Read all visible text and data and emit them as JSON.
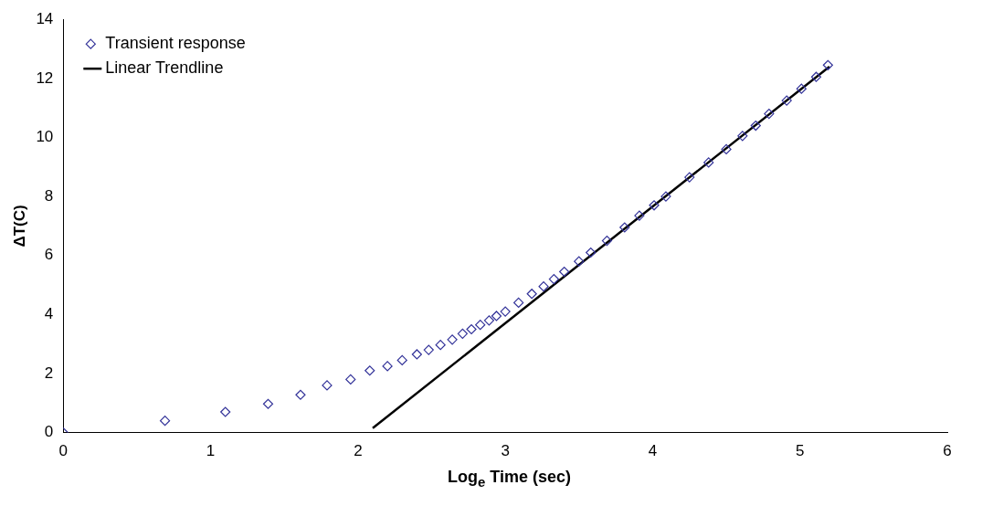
{
  "chart_data": {
    "type": "scatter",
    "xlabel": "Log$_{e}$ Time (sec)",
    "ylabel": "ΔT(C)",
    "xlim": [
      0,
      6
    ],
    "xticks": [
      0,
      1,
      2,
      3,
      4,
      5,
      6
    ],
    "ylim": [
      0,
      14
    ],
    "yticks": [
      0,
      2,
      4,
      6,
      8,
      10,
      12,
      14
    ],
    "grid": false,
    "legend": "top left",
    "series": [
      {
        "name": "Transient response",
        "type": "scatter",
        "marker": "diamond",
        "color": "#333399",
        "x": [
          0,
          0.69,
          1.1,
          1.39,
          1.61,
          1.79,
          1.95,
          2.08,
          2.2,
          2.3,
          2.4,
          2.48,
          2.56,
          2.64,
          2.71,
          2.77,
          2.83,
          2.89,
          2.94,
          3.0,
          3.09,
          3.18,
          3.26,
          3.33,
          3.4,
          3.5,
          3.58,
          3.69,
          3.81,
          3.91,
          4.01,
          4.09,
          4.25,
          4.38,
          4.5,
          4.61,
          4.7,
          4.79,
          4.91,
          5.01,
          5.11,
          5.19
        ],
        "values": [
          0,
          0.4,
          0.7,
          0.97,
          1.28,
          1.6,
          1.8,
          2.1,
          2.25,
          2.45,
          2.65,
          2.8,
          2.97,
          3.15,
          3.35,
          3.5,
          3.65,
          3.8,
          3.95,
          4.1,
          4.4,
          4.7,
          4.95,
          5.2,
          5.45,
          5.8,
          6.1,
          6.5,
          6.95,
          7.35,
          7.7,
          8.0,
          8.65,
          9.15,
          9.6,
          10.05,
          10.4,
          10.8,
          11.25,
          11.65,
          12.05,
          12.45
        ]
      },
      {
        "name": "Linear Trendline",
        "type": "line",
        "color": "#000000",
        "marker": "none",
        "line_style": "solid",
        "x": [
          2.1,
          5.2
        ],
        "values": [
          0.15,
          12.4
        ]
      }
    ]
  }
}
